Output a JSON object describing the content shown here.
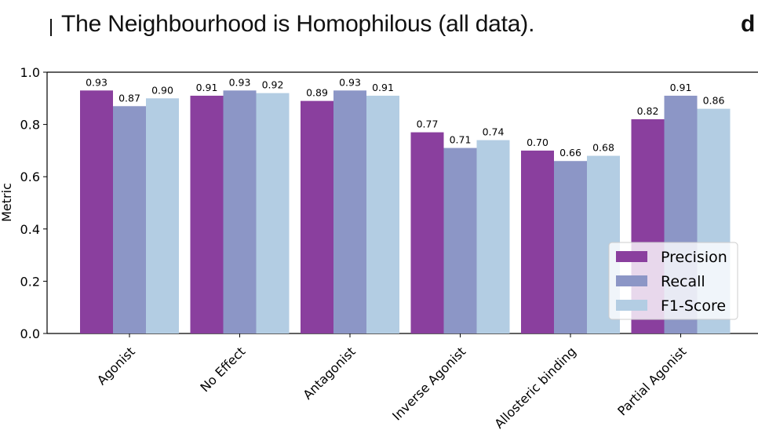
{
  "title": "The Neighbourhood is Homophilous (all data).",
  "corner_glyph": "d",
  "chart_data": {
    "type": "bar",
    "title": "The Neighbourhood is Homophilous (all data).",
    "xlabel": "",
    "ylabel": "Metric",
    "ylim": [
      0,
      1.0
    ],
    "yticks": [
      "0.0",
      "0.2",
      "0.4",
      "0.6",
      "0.8",
      "1.0"
    ],
    "categories": [
      "Agonist",
      "No Effect",
      "Antagonist",
      "Inverse Agonist",
      "Allosteric binding",
      "Partial Agonist"
    ],
    "series": [
      {
        "name": "Precision",
        "color": "#8a3f9e",
        "values": [
          0.93,
          0.91,
          0.89,
          0.77,
          0.7,
          0.82
        ],
        "labels": [
          "0.93",
          "0.91",
          "0.89",
          "0.77",
          "0.70",
          "0.82"
        ]
      },
      {
        "name": "Recall",
        "color": "#8c96c6",
        "values": [
          0.87,
          0.93,
          0.93,
          0.71,
          0.66,
          0.91
        ],
        "labels": [
          "0.87",
          "0.93",
          "0.93",
          "0.71",
          "0.66",
          "0.91"
        ]
      },
      {
        "name": "F1-Score",
        "color": "#b3cde3",
        "values": [
          0.9,
          0.92,
          0.91,
          0.74,
          0.68,
          0.86
        ],
        "labels": [
          "0.90",
          "0.92",
          "0.91",
          "0.74",
          "0.68",
          "0.86"
        ]
      }
    ],
    "legend_position": "lower-right",
    "grid": false
  }
}
